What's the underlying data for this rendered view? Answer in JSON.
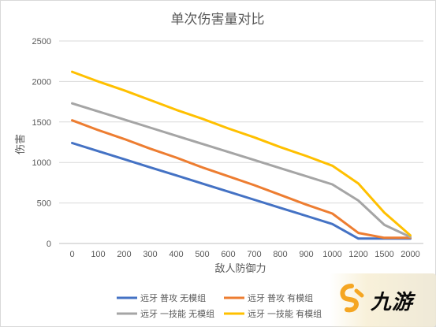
{
  "chart_data": {
    "type": "line",
    "title": "单次伤害量对比",
    "xlabel": "敌人防御力",
    "ylabel": "伤害",
    "x": [
      0,
      100,
      200,
      300,
      400,
      500,
      600,
      700,
      800,
      900,
      1000,
      1200,
      1500,
      2000
    ],
    "x_ticks": [
      "0",
      "100",
      "200",
      "300",
      "400",
      "500",
      "600",
      "700",
      "800",
      "900",
      "1000",
      "1200",
      "1500",
      "2000"
    ],
    "ylim": [
      0,
      2500
    ],
    "y_ticks": [
      "0",
      "500",
      "1000",
      "1500",
      "2000",
      "2500"
    ],
    "grid": true,
    "legend_position": "bottom",
    "series": [
      {
        "name": "远牙 普攻 无模组",
        "color": "#4472C4",
        "values": [
          1240,
          1140,
          1040,
          940,
          840,
          740,
          640,
          540,
          440,
          340,
          240,
          60,
          60,
          60
        ]
      },
      {
        "name": "远牙 普攻 有模组",
        "color": "#ED7D31",
        "values": [
          1520,
          1400,
          1290,
          1170,
          1060,
          940,
          830,
          720,
          600,
          480,
          370,
          130,
          70,
          70
        ]
      },
      {
        "name": "远牙 一技能 无模组",
        "color": "#A5A5A5",
        "values": [
          1730,
          1630,
          1530,
          1430,
          1330,
          1230,
          1130,
          1030,
          930,
          830,
          730,
          530,
          230,
          80
        ]
      },
      {
        "name": "远牙 一技能 有模组",
        "color": "#FFC000",
        "values": [
          2120,
          2000,
          1890,
          1770,
          1650,
          1540,
          1420,
          1310,
          1190,
          1080,
          960,
          740,
          380,
          100
        ]
      }
    ]
  },
  "watermark": {
    "text": "九游",
    "icon": "jiuyou-logo-icon",
    "color": "#F5A623"
  }
}
